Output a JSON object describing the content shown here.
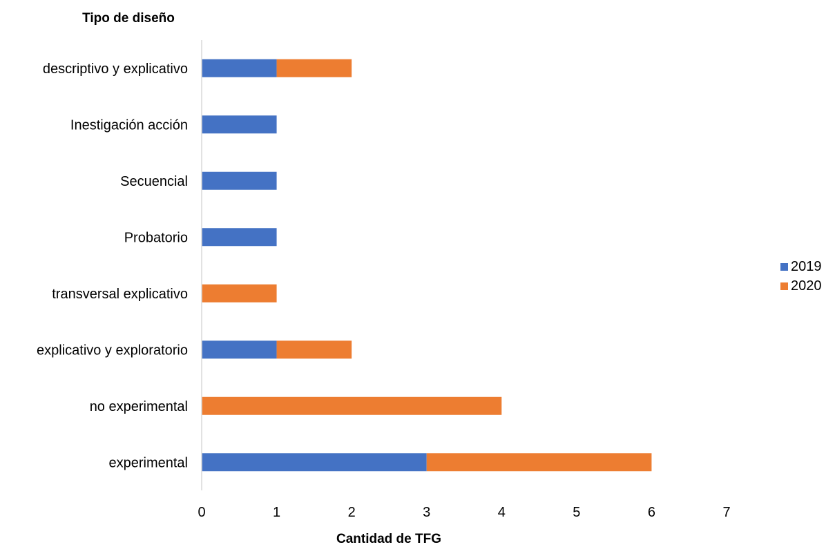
{
  "chart_data": {
    "type": "bar",
    "orientation": "horizontal",
    "stacked": true,
    "ylabel": "Tipo de diseño",
    "xlabel": "Cantidad de TFG",
    "categories": [
      "experimental",
      "no experimental",
      "explicativo y exploratorio",
      "transversal explicativo",
      "Probatorio ",
      "Secuencial",
      "Inestigación acción ",
      "descriptivo y explicativo"
    ],
    "series": [
      {
        "name": "2019",
        "color": "#4472C4",
        "values": [
          3,
          0,
          1,
          0,
          1,
          1,
          1,
          1
        ]
      },
      {
        "name": "2020",
        "color": "#ED7D31",
        "values": [
          3,
          4,
          1,
          1,
          0,
          0,
          0,
          1
        ]
      }
    ],
    "xlim": [
      0,
      7
    ],
    "xticks": [
      "0",
      "1",
      "2",
      "3",
      "4",
      "5",
      "6",
      "7"
    ],
    "grid": false,
    "legend_position": "right"
  }
}
